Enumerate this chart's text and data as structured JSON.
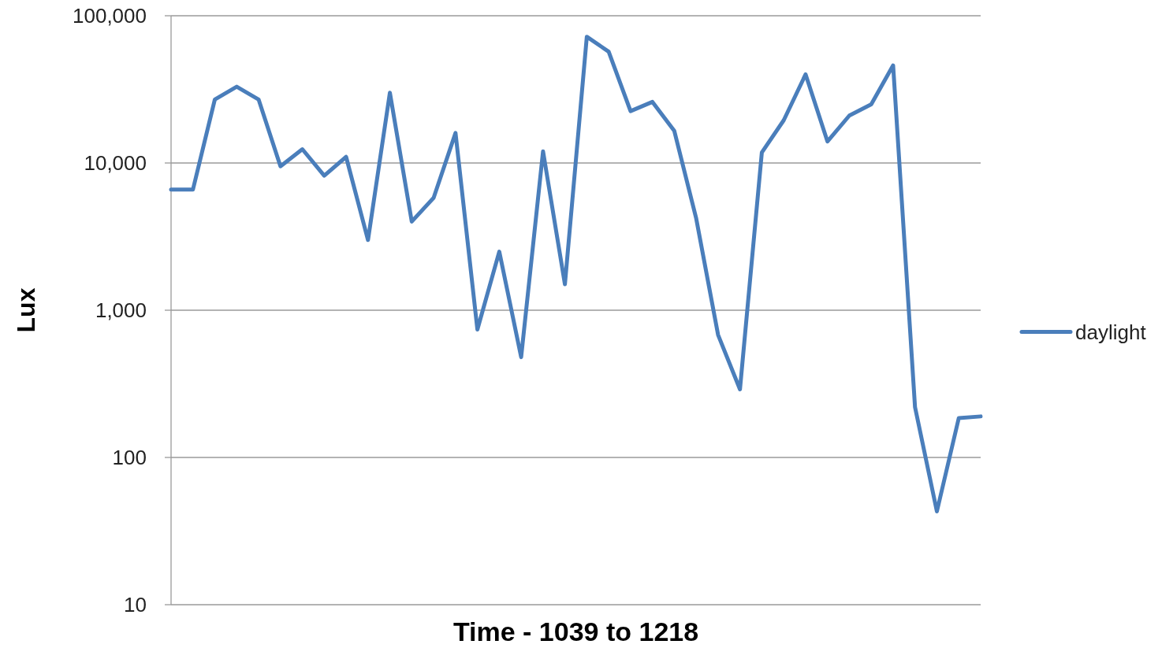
{
  "chart_data": {
    "type": "line",
    "xlabel": "Time - 1039 to 1218",
    "ylabel": "Lux",
    "categories": [
      null,
      null,
      null,
      null,
      null,
      null,
      null,
      null,
      null,
      null,
      null,
      null,
      null,
      null,
      null,
      null,
      null,
      null,
      null,
      null,
      null,
      null,
      null,
      null,
      null,
      null,
      null,
      null,
      null,
      null,
      null,
      null,
      null,
      null,
      null,
      null,
      null,
      null
    ],
    "series": [
      {
        "name": "daylight",
        "color": "#4a7ebb",
        "values": [
          6600,
          6600,
          27000,
          33000,
          27000,
          9500,
          12400,
          8200,
          11000,
          3000,
          30000,
          4000,
          5800,
          16000,
          740,
          2500,
          480,
          12000,
          1500,
          72000,
          57000,
          22500,
          26000,
          16500,
          4200,
          680,
          290,
          11800,
          19500,
          40000,
          14000,
          21000,
          25000,
          46000,
          220,
          43,
          185,
          190
        ]
      }
    ],
    "ylim": [
      10,
      100000
    ],
    "yticks": [
      10,
      100,
      {
        "value": 1000,
        "label": "1,000"
      },
      {
        "value": 10000,
        "label": "10,000"
      },
      {
        "value": 100000,
        "label": "100,000"
      }
    ],
    "log": "y",
    "grid": "y",
    "legend": "right",
    "tick_labels": "y"
  }
}
